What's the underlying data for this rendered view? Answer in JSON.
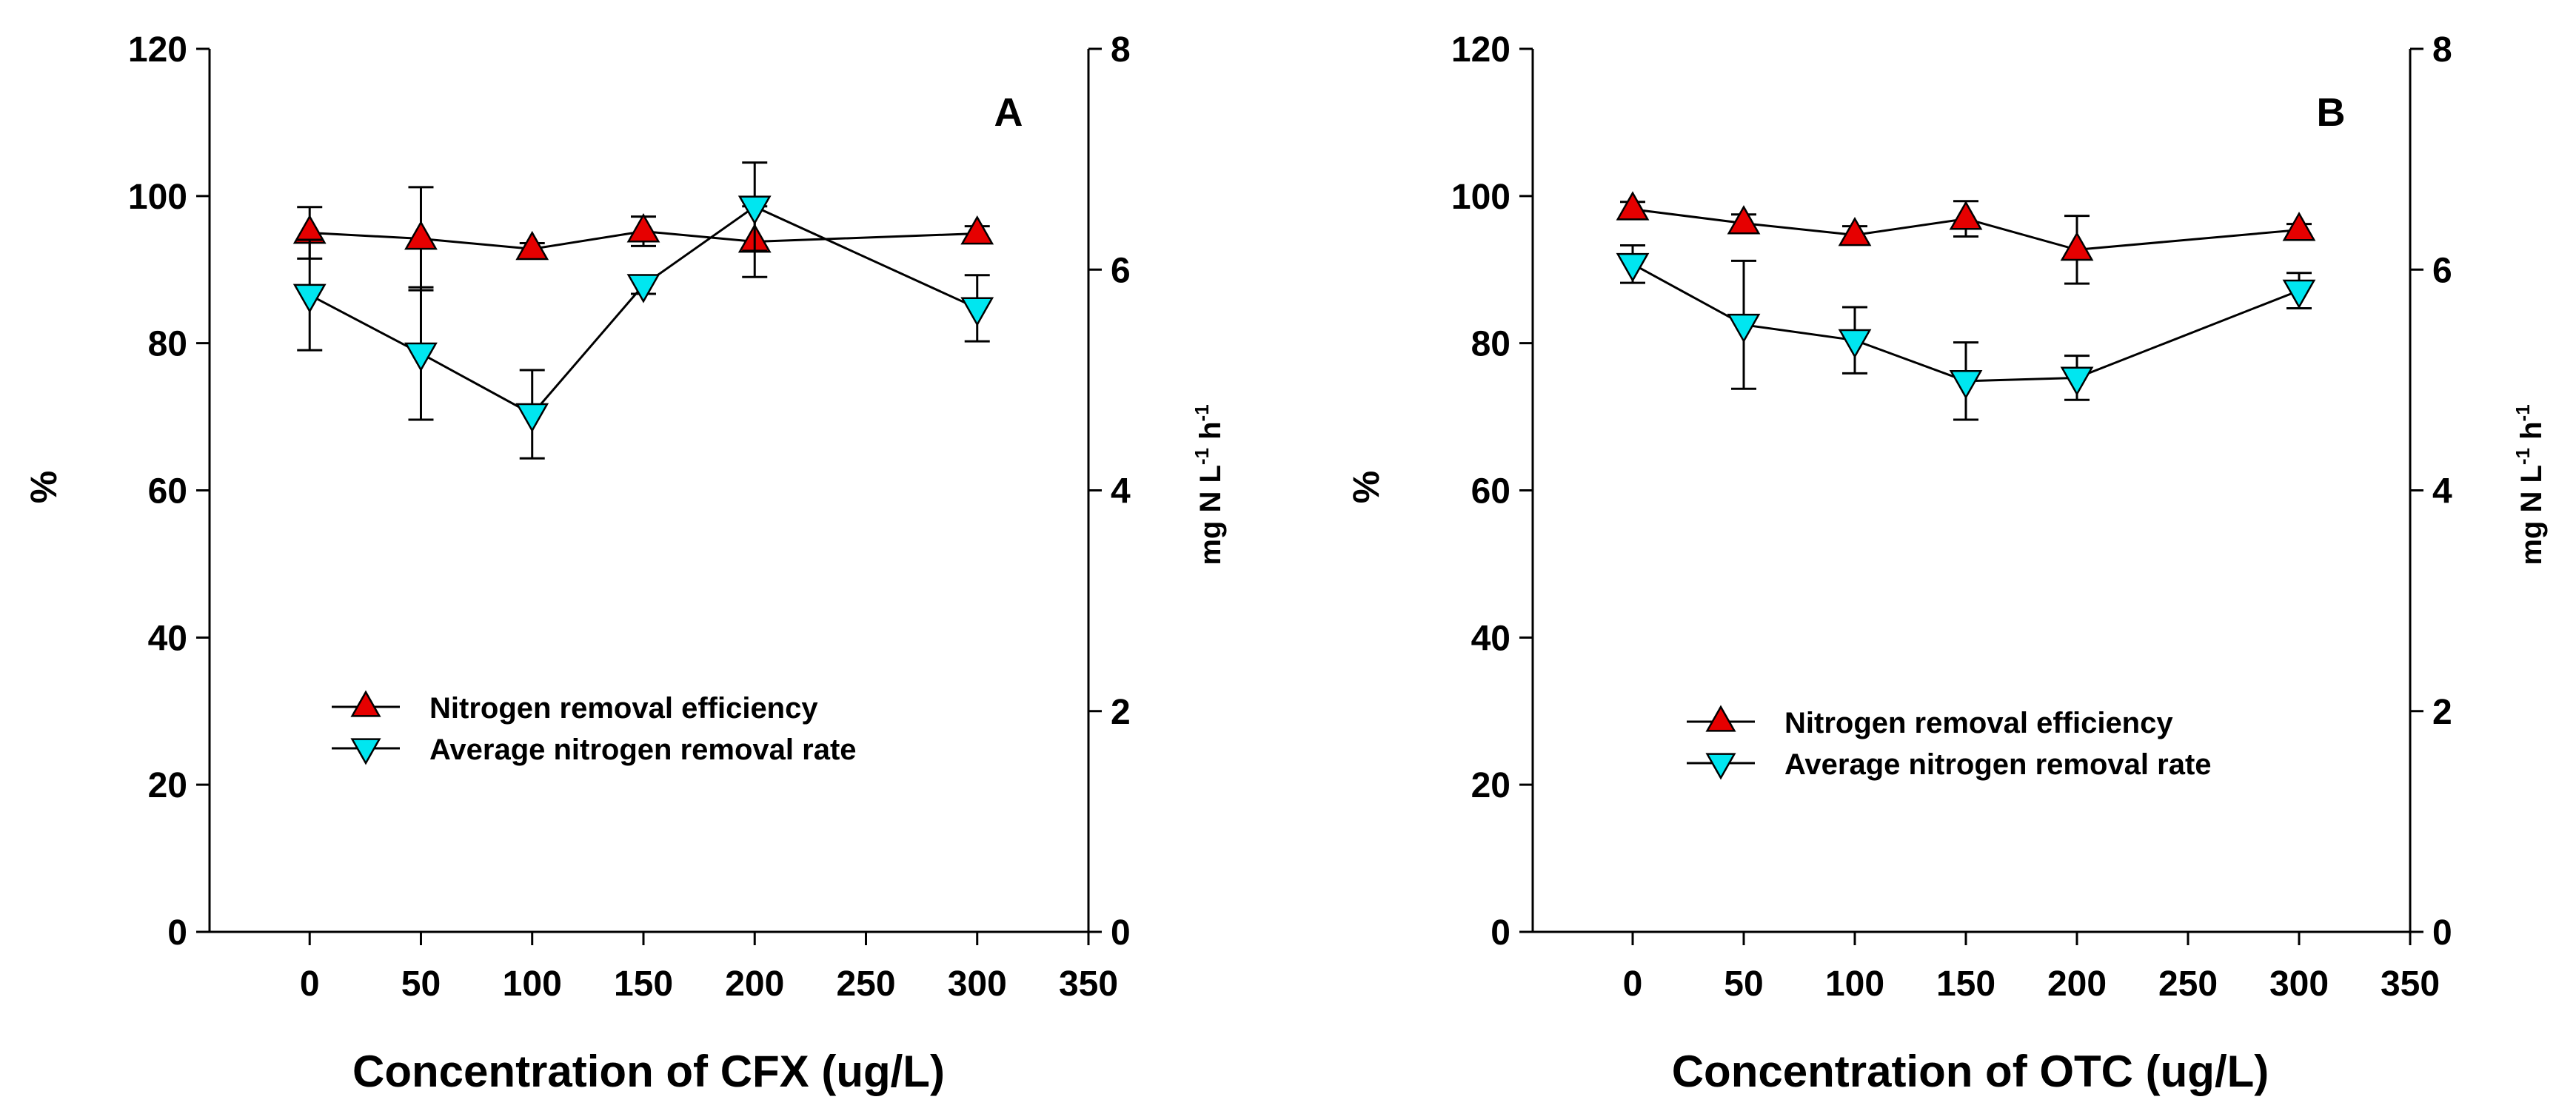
{
  "chart_data": [
    {
      "type": "line",
      "panel_label": "A",
      "xlabel": "Concentration of CFX (ug/L)",
      "ylabel": "%",
      "y2label": {
        "main": "mg N L",
        "sup1": "-1",
        "mid": " h",
        "sup2": "-1"
      },
      "xlim": [
        -45,
        350
      ],
      "xticks": [
        0,
        50,
        100,
        150,
        200,
        250,
        300,
        350
      ],
      "ylim": [
        0,
        120
      ],
      "yticks": [
        0,
        20,
        40,
        60,
        80,
        100,
        120
      ],
      "y2lim": [
        0,
        8
      ],
      "y2ticks": [
        0,
        2,
        4,
        6,
        8
      ],
      "legend_position": "center-left",
      "series": [
        {
          "name": "Nitrogen removal efficiency",
          "axis": "left",
          "marker": "triangle-up",
          "color": "#e60000",
          "x": [
            0,
            50,
            100,
            150,
            200,
            300
          ],
          "y": [
            95,
            94.2,
            92.8,
            95.2,
            93.8,
            94.9
          ],
          "err": [
            3.5,
            7,
            0.8,
            2,
            4.8,
            1
          ]
        },
        {
          "name": "Average nitrogen removal rate",
          "axis": "right",
          "marker": "triangle-down",
          "color": "#00e6f0",
          "x": [
            0,
            50,
            100,
            150,
            200,
            300
          ],
          "y": [
            5.77,
            5.24,
            4.69,
            5.86,
            6.57,
            5.65
          ],
          "err": [
            0.5,
            0.6,
            0.4,
            0.08,
            0.4,
            0.3
          ]
        }
      ]
    },
    {
      "type": "line",
      "panel_label": "B",
      "xlabel": "Concentration of OTC (ug/L)",
      "ylabel": "%",
      "y2label": {
        "main": "mg N L",
        "sup1": "-1",
        "mid": " h",
        "sup2": "-1"
      },
      "xlim": [
        -45,
        350
      ],
      "xticks": [
        0,
        50,
        100,
        150,
        200,
        250,
        300,
        350
      ],
      "ylim": [
        0,
        120
      ],
      "yticks": [
        0,
        20,
        40,
        60,
        80,
        100,
        120
      ],
      "y2lim": [
        0,
        8
      ],
      "y2ticks": [
        0,
        2,
        4,
        6,
        8
      ],
      "legend_position": "center-left",
      "series": [
        {
          "name": "Nitrogen removal efficiency",
          "axis": "left",
          "marker": "triangle-up",
          "color": "#e60000",
          "x": [
            0,
            50,
            100,
            150,
            200,
            300
          ],
          "y": [
            98.2,
            96.3,
            94.7,
            96.9,
            92.7,
            95.4
          ],
          "err": [
            1,
            1.2,
            1.2,
            2.4,
            4.6,
            0.8
          ]
        },
        {
          "name": "Average nitrogen removal rate",
          "axis": "right",
          "marker": "triangle-down",
          "color": "#00e6f0",
          "x": [
            0,
            50,
            100,
            150,
            200,
            300
          ],
          "y": [
            6.05,
            5.5,
            5.36,
            4.99,
            5.02,
            5.81
          ],
          "err": [
            0.17,
            0.58,
            0.3,
            0.35,
            0.2,
            0.16
          ]
        }
      ]
    }
  ]
}
